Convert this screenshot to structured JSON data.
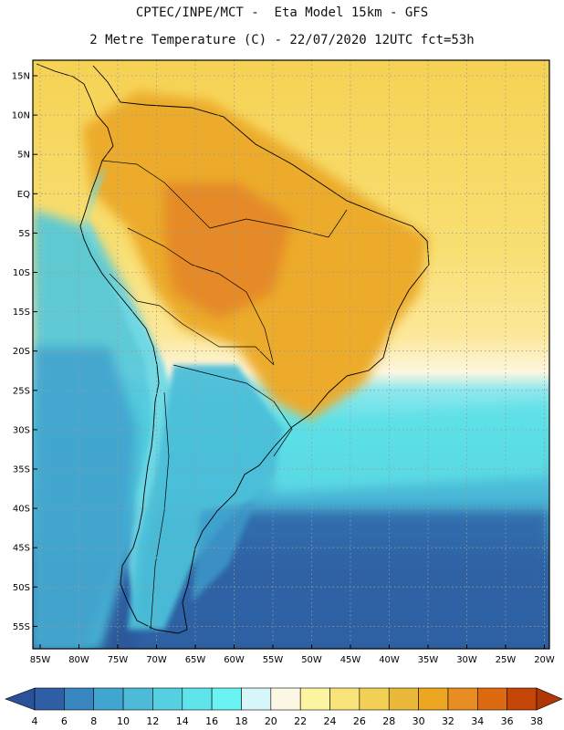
{
  "header": {
    "title_line1": "CPTEC/INPE/MCT -  Eta Model 15km - GFS",
    "title_line2": "2 Metre Temperature (C) - 22/07/2020 12UTC fct=53h"
  },
  "map": {
    "lat_labels": [
      "15N",
      "10N",
      "5N",
      "EQ",
      "5S",
      "10S",
      "15S",
      "20S",
      "25S",
      "30S",
      "35S",
      "40S",
      "45S",
      "50S",
      "55S"
    ],
    "lon_labels": [
      "85W",
      "80W",
      "75W",
      "70W",
      "65W",
      "60W",
      "55W",
      "50W",
      "45W",
      "40W",
      "35W",
      "30W",
      "25W",
      "20W"
    ],
    "frame_color": "#000000",
    "grid_color": "#9a9a9a",
    "coastline_color": "#000000"
  },
  "colorbar": {
    "values": [
      "4",
      "6",
      "8",
      "10",
      "12",
      "14",
      "16",
      "18",
      "20",
      "22",
      "24",
      "26",
      "28",
      "30",
      "32",
      "34",
      "36",
      "38"
    ],
    "colors": [
      "#2f5ea5",
      "#3a86c0",
      "#40a6cf",
      "#4dbbd8",
      "#55d0e0",
      "#5ee4ea",
      "#69f3f3",
      "#d6f6fa",
      "#fdf8e4",
      "#fcf4a0",
      "#f8e37a",
      "#f2d056",
      "#eab93a",
      "#eca621",
      "#e78d22",
      "#dd6a10",
      "#c44505"
    ],
    "under_color": "#2b5298",
    "over_color": "#b03806"
  }
}
